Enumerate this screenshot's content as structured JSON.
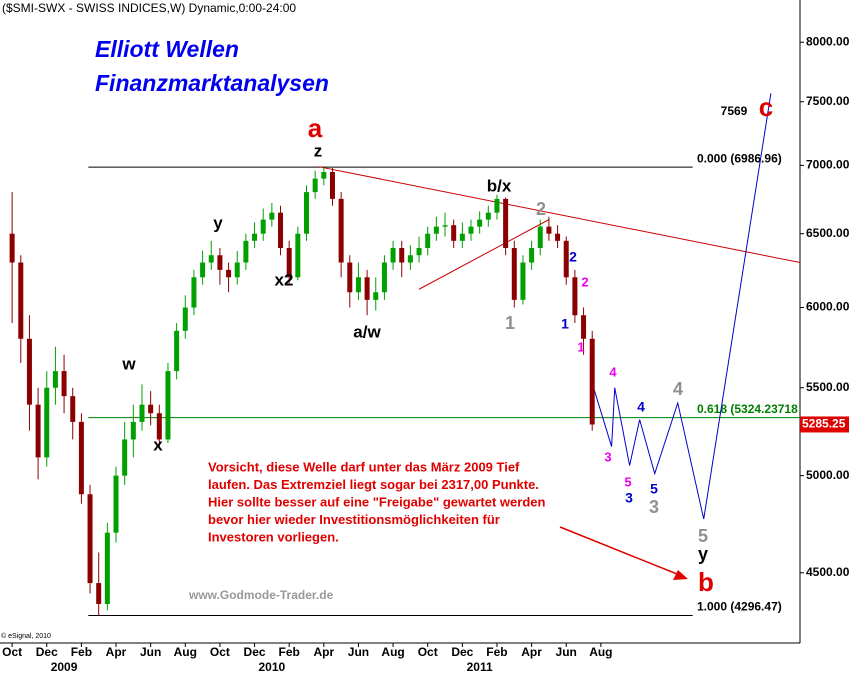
{
  "chart_data": {
    "type": "candlestick",
    "title": "($SMI-SWX - SWISS INDICES,W) Dynamic,0:00-24:00",
    "brand": [
      "Elliott Wellen",
      "Finanzmarktanalysen"
    ],
    "source": "www.Godmode-Trader.de",
    "copyright": "© eSignal, 2010",
    "note": [
      "Vorsicht, diese Welle darf unter das März 2009 Tief",
      "laufen. Das Extremziel liegt sogar bei 2317,00 Punkte.",
      "Hier sollte besser auf eine \"Freigabe\" gewartet werden",
      "bevor hier wieder Investitionsmöglichkeiten für",
      "Investoren vorliegen."
    ],
    "log_scale": true,
    "up_color": "#00a000",
    "down_color": "#8b0000",
    "xlim": [
      -0.7,
      45.5
    ],
    "ylim": [
      4170,
      8375
    ],
    "yticks": [
      {
        "value": 4500,
        "label": "4500.00"
      },
      {
        "value": 5000,
        "label": "5000.00"
      },
      {
        "value": 5500,
        "label": "5500.00"
      },
      {
        "value": 6000,
        "label": "6000.00"
      },
      {
        "value": 6500,
        "label": "6500.00"
      },
      {
        "value": 7000,
        "label": "7000.00"
      },
      {
        "value": 7500,
        "label": "7500.00"
      },
      {
        "value": 8000,
        "label": "8000.00"
      }
    ],
    "xticks": [
      {
        "value": 0,
        "label": "Oct"
      },
      {
        "value": 2,
        "label": "Dec"
      },
      {
        "value": 4,
        "label": "Feb"
      },
      {
        "value": 6,
        "label": "Apr"
      },
      {
        "value": 8,
        "label": "Jun"
      },
      {
        "value": 10,
        "label": "Aug"
      },
      {
        "value": 12,
        "label": "Oct"
      },
      {
        "value": 14,
        "label": "Dec"
      },
      {
        "value": 16,
        "label": "Feb"
      },
      {
        "value": 18,
        "label": "Apr"
      },
      {
        "value": 20,
        "label": "Jun"
      },
      {
        "value": 22,
        "label": "Aug"
      },
      {
        "value": 24,
        "label": "Oct"
      },
      {
        "value": 26,
        "label": "Dec"
      },
      {
        "value": 28,
        "label": "Feb"
      },
      {
        "value": 30,
        "label": "Apr"
      },
      {
        "value": 32,
        "label": "Jun"
      },
      {
        "value": 34,
        "label": "Aug"
      }
    ],
    "year_ticks": [
      {
        "value": 3,
        "label": "2009"
      },
      {
        "value": 15,
        "label": "2010"
      },
      {
        "value": 27,
        "label": "2011"
      }
    ],
    "x": [
      0,
      0.5,
      1,
      1.5,
      2,
      2.5,
      3,
      3.5,
      4,
      4.5,
      5,
      5.5,
      6,
      6.5,
      7,
      7.5,
      8,
      8.5,
      9,
      9.5,
      10,
      10.5,
      11,
      11.5,
      12,
      12.5,
      13,
      13.5,
      14,
      14.5,
      15,
      15.5,
      16,
      16.5,
      17,
      17.5,
      18,
      18.5,
      19,
      19.5,
      20,
      20.5,
      21,
      21.5,
      22,
      22.5,
      23,
      23.5,
      24,
      24.5,
      25,
      25.5,
      26,
      26.5,
      27,
      27.5,
      28,
      28.5,
      29,
      29.5,
      30,
      30.5,
      31,
      31.5,
      32,
      32.5,
      33,
      33.5
    ],
    "open": [
      6500,
      6300,
      5800,
      5400,
      5100,
      5500,
      5600,
      5450,
      5300,
      4900,
      4450,
      4350,
      4700,
      5000,
      5200,
      5300,
      5400,
      5350,
      5200,
      5600,
      5850,
      6000,
      6200,
      6300,
      6350,
      6250,
      6200,
      6300,
      6450,
      6500,
      6600,
      6650,
      6400,
      6200,
      6500,
      6800,
      6900,
      6950,
      6750,
      6300,
      6100,
      6200,
      6050,
      6100,
      6300,
      6400,
      6300,
      6350,
      6400,
      6500,
      6550,
      6560,
      6450,
      6500,
      6550,
      6600,
      6650,
      6750,
      6400,
      6050,
      6300,
      6400,
      6550,
      6500,
      6450,
      6200,
      5950,
      5800
    ],
    "high": [
      6800,
      6350,
      5950,
      5500,
      5600,
      5750,
      5700,
      5500,
      5350,
      4950,
      4600,
      4750,
      5050,
      5300,
      5400,
      5520,
      5480,
      5400,
      5650,
      5900,
      6080,
      6250,
      6380,
      6450,
      6400,
      6300,
      6380,
      6500,
      6580,
      6680,
      6720,
      6700,
      6450,
      6550,
      6850,
      6960,
      6987,
      6980,
      6800,
      6350,
      6300,
      6250,
      6200,
      6350,
      6450,
      6450,
      6420,
      6480,
      6550,
      6620,
      6650,
      6600,
      6580,
      6600,
      6660,
      6700,
      6780,
      6760,
      6450,
      6350,
      6450,
      6600,
      6620,
      6560,
      6480,
      6250,
      6000,
      5850
    ],
    "low": [
      5900,
      5650,
      5250,
      4980,
      5050,
      5400,
      5350,
      5200,
      4850,
      4400,
      4296,
      4320,
      4650,
      4950,
      5100,
      5250,
      5280,
      5150,
      5180,
      5550,
      5800,
      5950,
      6150,
      6250,
      6150,
      6100,
      6150,
      6250,
      6400,
      6450,
      6550,
      6350,
      6150,
      6180,
      6450,
      6750,
      6850,
      6700,
      6200,
      6000,
      6050,
      5950,
      5980,
      6050,
      6250,
      6200,
      6250,
      6300,
      6350,
      6450,
      6480,
      6400,
      6400,
      6450,
      6500,
      6550,
      6600,
      6350,
      6000,
      6020,
      6250,
      6350,
      6450,
      6400,
      6150,
      5900,
      5700,
      5250
    ],
    "close": [
      6300,
      5800,
      5400,
      5100,
      5500,
      5600,
      5450,
      5300,
      4900,
      4450,
      4350,
      4700,
      5000,
      5200,
      5300,
      5400,
      5350,
      5200,
      5600,
      5850,
      6000,
      6200,
      6300,
      6350,
      6250,
      6200,
      6300,
      6450,
      6500,
      6600,
      6650,
      6400,
      6200,
      6500,
      6800,
      6900,
      6950,
      6750,
      6300,
      6100,
      6200,
      6050,
      6100,
      6300,
      6400,
      6300,
      6350,
      6400,
      6500,
      6550,
      6560,
      6450,
      6500,
      6550,
      6600,
      6650,
      6750,
      6400,
      6050,
      6300,
      6400,
      6550,
      6500,
      6450,
      6200,
      5950,
      5800,
      5285.25
    ],
    "last_price": {
      "value": 5285.25,
      "label": "5285.25"
    },
    "levels": [
      {
        "label": "0.000 (6986.96)",
        "value": 6986.96,
        "x": [
          4.4,
          39.3
        ],
        "color": "#000000"
      },
      {
        "label": "0.618 (5324.23718",
        "value": 5324.23718,
        "x": [
          4.4,
          45.5
        ],
        "color": "#008000"
      },
      {
        "label": "1.000 (4296.47)",
        "value": 4296.47,
        "x": [
          4.4,
          39.3
        ],
        "color": "#000000"
      }
    ],
    "trend_lines": [
      {
        "color": "#cc0000",
        "x": [
          17.7,
          45.5
        ],
        "y": [
          6990,
          6300
        ]
      },
      {
        "color": "#cc0000",
        "x": [
          23.5,
          31
        ],
        "y": [
          6120,
          6600
        ]
      },
      {
        "color": "#0000cc",
        "x": [
          33.58,
          34.62,
          34.8,
          35.66,
          36.24,
          37.11,
          38.44,
          39.94,
          43.82
        ],
        "y": [
          5500,
          5160,
          5500,
          5055,
          5313,
          5011,
          5410,
          4770,
          7569
        ]
      }
    ],
    "annotations": [
      {
        "text": "a",
        "color": "#e00000"
      },
      {
        "text": "z",
        "color": "#000000"
      },
      {
        "text": "y",
        "color": "#000000"
      },
      {
        "text": "x2",
        "color": "#000000"
      },
      {
        "text": "w",
        "color": "#000000"
      },
      {
        "text": "x",
        "color": "#000000"
      },
      {
        "text": "a/w",
        "color": "#000000"
      },
      {
        "text": "b/x",
        "color": "#000000"
      },
      {
        "text": "2",
        "color": "#909090"
      },
      {
        "text": "1",
        "color": "#909090"
      },
      {
        "text": "2",
        "color": "#0000cc"
      },
      {
        "text": "1",
        "color": "#0000cc"
      },
      {
        "text": "2",
        "color": "#ee00ee"
      },
      {
        "text": "1",
        "color": "#ee00ee"
      },
      {
        "text": "3",
        "color": "#ee00ee"
      },
      {
        "text": "4",
        "color": "#ee00ee"
      },
      {
        "text": "5",
        "color": "#ee00ee"
      },
      {
        "text": "3",
        "color": "#0000cc"
      },
      {
        "text": "4",
        "color": "#0000cc"
      },
      {
        "text": "5",
        "color": "#0000cc"
      },
      {
        "text": "3",
        "color": "#909090"
      },
      {
        "text": "4",
        "color": "#909090"
      },
      {
        "text": "5",
        "color": "#909090"
      },
      {
        "text": "y",
        "color": "#000000"
      },
      {
        "text": "b",
        "color": "#e00000"
      },
      {
        "text": "c",
        "color": "#e00000"
      },
      {
        "text": "7569",
        "color": "#000000"
      }
    ]
  }
}
